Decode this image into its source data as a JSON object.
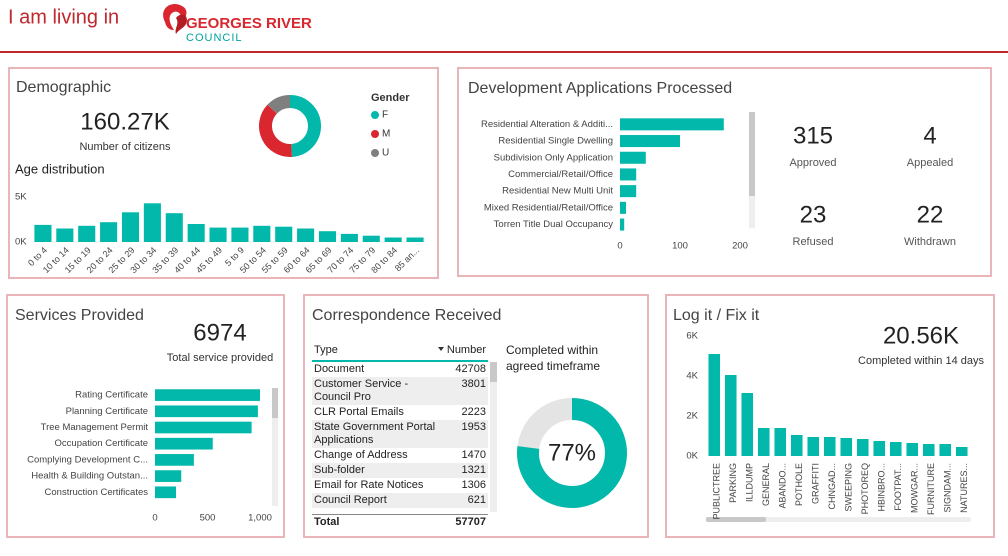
{
  "header": {
    "title": "I am living in",
    "logo_name": "GEORGES RIVER",
    "logo_sub": "COUNCIL"
  },
  "demographic": {
    "title": "Demographic",
    "total": "160.27K",
    "total_label": "Number of citizens"
  },
  "development": {
    "title": "Development Applications Processed",
    "stats": [
      {
        "value": 315,
        "label": "Approved"
      },
      {
        "value": 4,
        "label": "Appealed"
      },
      {
        "value": 23,
        "label": "Refused"
      },
      {
        "value": 22,
        "label": "Withdrawn"
      }
    ]
  },
  "services": {
    "title": "Services Provided",
    "total": 6974,
    "total_label": "Total service provided"
  },
  "correspondence": {
    "title": "Correspondence Received",
    "table": {
      "columns": [
        "Type",
        "Number"
      ],
      "rows": [
        [
          "Document",
          42708
        ],
        [
          "Customer Service - Council Pro",
          3801
        ],
        [
          "CLR Portal Emails",
          2223
        ],
        [
          "State Government Portal Applications",
          1953
        ],
        [
          "Change of Address",
          1470
        ],
        [
          "Sub-folder",
          1321
        ],
        [
          "Email for Rate Notices",
          1306
        ],
        [
          "Council Report",
          621
        ]
      ],
      "total": [
        "Total",
        57707
      ]
    }
  },
  "logfix": {
    "title": "Log it / Fix it",
    "total": "20.56K",
    "total_label": "Completed within 14 days"
  },
  "chart_data": [
    {
      "type": "donut",
      "legend_title": "Gender",
      "categories": [
        "F",
        "M",
        "U"
      ],
      "values": [
        49,
        38,
        13
      ],
      "colors": [
        "#01b8aa",
        "#d9262f",
        "#7f7f7f"
      ]
    },
    {
      "type": "bar",
      "title": "Age distribution",
      "categories": [
        "0 to 4",
        "10 to 14",
        "15 to 19",
        "20 to 24",
        "25 to 29",
        "30 to 34",
        "35 to 39",
        "40 to 44",
        "45 to 49",
        "5 to 9",
        "50 to 54",
        "55 to 59",
        "60 to 64",
        "65 to 69",
        "70 to 74",
        "75 to 79",
        "80 to 84",
        "85 an..."
      ],
      "values": [
        1900,
        1500,
        1800,
        2200,
        3300,
        4300,
        3200,
        2000,
        1600,
        1600,
        1800,
        1700,
        1500,
        1200,
        900,
        700,
        500,
        500
      ],
      "color": "#01b8aa",
      "ylim": [
        0,
        5500
      ],
      "yticks": [
        {
          "value": 0,
          "label": "0K"
        },
        {
          "value": 5000,
          "label": "5K"
        }
      ]
    },
    {
      "type": "hbar",
      "categories": [
        "Residential Alteration & Additi...",
        "Residential Single Dwelling",
        "Subdivision Only Application",
        "Commercial/Retail/Office",
        "Residential New Multi Unit",
        "Mixed Residential/Retail/Office",
        "Torren Title Dual Occupancy"
      ],
      "values": [
        173,
        100,
        43,
        27,
        27,
        10,
        7
      ],
      "color": "#01b8aa",
      "xlim": [
        0,
        200
      ],
      "xticks": [
        0,
        100,
        200
      ]
    },
    {
      "type": "hbar",
      "categories": [
        "Rating Certificate",
        "Planning Certificate",
        "Tree Management Permit",
        "Occupation Certificate",
        "Complying Development C...",
        "Health & Building Outstan...",
        "Construction Certificates"
      ],
      "values": [
        1000,
        980,
        920,
        550,
        370,
        250,
        200
      ],
      "color": "#01b8aa",
      "xlim": [
        0,
        1000
      ],
      "xticks": [
        0,
        500,
        {
          "value": 1000,
          "label": "1,000"
        }
      ]
    },
    {
      "type": "gauge",
      "title": "Completed within agreed timeframe",
      "values": [
        77
      ],
      "value_labels": [
        "77%"
      ],
      "ylim": [
        0,
        100
      ],
      "color": "#01b8aa",
      "track_color": "#e4e4e4"
    },
    {
      "type": "bar",
      "categories": [
        "PUBLICTREE",
        "PARKING",
        "ILLDUMP",
        "GENERAL",
        "ABANDO...",
        "POTHOLE",
        "GRAFFITI",
        "CHNGAD...",
        "SWEEPING",
        "PHOTOREQ",
        "HBINBRO...",
        "FOOTPAT...",
        "MOWGAR...",
        "FURNITURE",
        "SIGNDAM...",
        "NATURES..."
      ],
      "values": [
        5100,
        4050,
        3150,
        1400,
        1400,
        1050,
        950,
        950,
        900,
        850,
        750,
        700,
        650,
        600,
        600,
        450
      ],
      "color": "#01b8aa",
      "ylim": [
        0,
        6000
      ],
      "yticks": [
        {
          "value": 0,
          "label": "0K"
        },
        {
          "value": 2000,
          "label": "2K"
        },
        {
          "value": 4000,
          "label": "4K"
        },
        {
          "value": 6000,
          "label": "6K"
        }
      ]
    }
  ]
}
